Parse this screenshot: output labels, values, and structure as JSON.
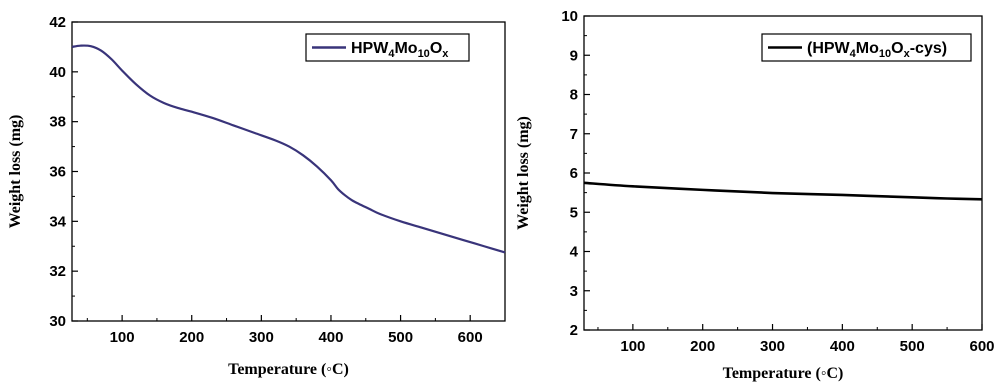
{
  "chart_data": [
    {
      "type": "line",
      "title": "",
      "xlabel": "Temperature (◦C)",
      "ylabel": "Weight loss (mg)",
      "xlim": [
        28,
        650
      ],
      "ylim": [
        30,
        42
      ],
      "xticks": [
        100,
        200,
        300,
        400,
        500,
        600
      ],
      "yticks": [
        30,
        32,
        34,
        36,
        38,
        40,
        42
      ],
      "legend": {
        "position": "top-right",
        "entry_parts": [
          {
            "text": "HPW",
            "sub": false
          },
          {
            "text": "4",
            "sub": true
          },
          {
            "text": "Mo",
            "sub": false
          },
          {
            "text": "10",
            "sub": true
          },
          {
            "text": "O",
            "sub": false
          },
          {
            "text": "x",
            "sub": true
          }
        ]
      },
      "series": [
        {
          "name": "HPW4Mo10Ox",
          "color": "#39347a",
          "x": [
            28,
            40,
            55,
            70,
            85,
            100,
            120,
            140,
            160,
            180,
            200,
            230,
            260,
            290,
            320,
            340,
            360,
            380,
            400,
            410,
            420,
            430,
            440,
            455,
            470,
            500,
            530,
            560,
            590,
            620,
            650
          ],
          "y": [
            41.0,
            41.05,
            41.03,
            40.85,
            40.5,
            40.05,
            39.5,
            39.05,
            38.75,
            38.55,
            38.4,
            38.15,
            37.85,
            37.55,
            37.25,
            37.0,
            36.65,
            36.2,
            35.65,
            35.3,
            35.05,
            34.85,
            34.7,
            34.5,
            34.3,
            34.0,
            33.75,
            33.5,
            33.25,
            33.0,
            32.75
          ]
        }
      ],
      "grid": false
    },
    {
      "type": "line",
      "title": "",
      "xlabel": "Temperature (◦C)",
      "ylabel": "Weight loss (mg)",
      "xlim": [
        30,
        600
      ],
      "ylim": [
        2,
        10
      ],
      "xticks": [
        100,
        200,
        300,
        400,
        500,
        600
      ],
      "yticks": [
        2,
        3,
        4,
        5,
        6,
        7,
        8,
        9,
        10
      ],
      "legend": {
        "position": "top-right",
        "entry_parts": [
          {
            "text": "(HPW",
            "sub": false
          },
          {
            "text": "4",
            "sub": true
          },
          {
            "text": "Mo",
            "sub": false
          },
          {
            "text": "10",
            "sub": true
          },
          {
            "text": "O",
            "sub": false
          },
          {
            "text": "x",
            "sub": true
          },
          {
            "text": "-cys)",
            "sub": false
          }
        ]
      },
      "series": [
        {
          "name": "(HPW4Mo10Ox-cys)",
          "color": "#000000",
          "x": [
            30,
            100,
            200,
            300,
            400,
            500,
            550,
            600
          ],
          "y": [
            5.75,
            5.66,
            5.57,
            5.49,
            5.44,
            5.38,
            5.35,
            5.33
          ]
        }
      ],
      "grid": false
    }
  ]
}
